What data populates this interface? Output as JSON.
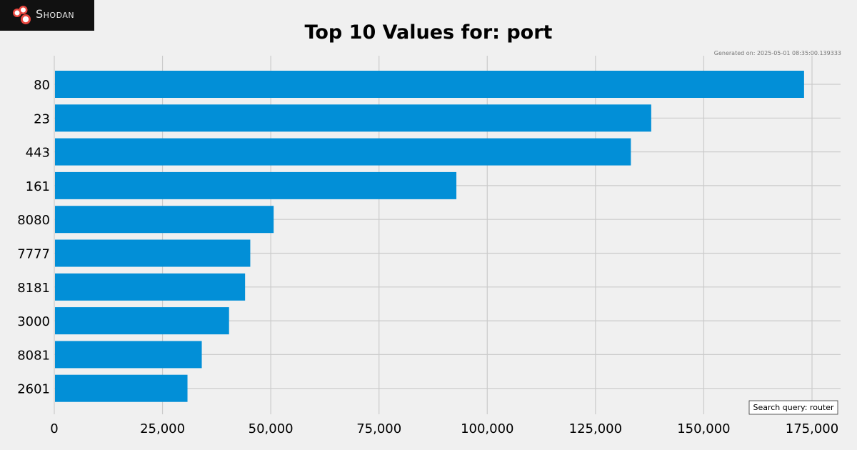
{
  "brand": {
    "name": "Shodan"
  },
  "generated_on": "Generated on: 2025-05-01 08:35:00.139333",
  "search_query": "Search query: router",
  "colors": {
    "bar": "#028fd7",
    "grid": "#cbcbcb",
    "background": "#f0f0f0",
    "logo_bg": "#111111",
    "logo_accent": "#e8473f"
  },
  "chart_data": {
    "type": "bar",
    "orientation": "horizontal",
    "title": "Top 10 Values for: port",
    "categories": [
      "80",
      "23",
      "443",
      "161",
      "8080",
      "7777",
      "8181",
      "3000",
      "8081",
      "2601"
    ],
    "values": [
      173000,
      137700,
      133000,
      92700,
      50500,
      45100,
      43900,
      40200,
      33900,
      30600
    ],
    "xlim": [
      0,
      180000
    ],
    "xticks": [
      0,
      25000,
      50000,
      75000,
      100000,
      125000,
      150000,
      175000
    ],
    "xtick_labels": [
      "0",
      "25,000",
      "50,000",
      "75,000",
      "100,000",
      "125,000",
      "150,000",
      "175,000"
    ],
    "grid": true,
    "legend": "none"
  }
}
